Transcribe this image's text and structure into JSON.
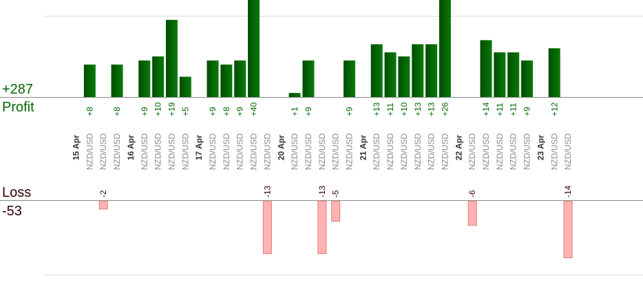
{
  "summary": {
    "profit_total": "+287",
    "profit_label": "Profit",
    "loss_label": "Loss",
    "loss_total": "-53"
  },
  "colors": {
    "profit_bar_dark": "#004d00",
    "profit_bar_light": "#0a7a0a",
    "profit_text": "#006600",
    "loss_bar": "#ffb3b3",
    "loss_bar_border": "#e07a7a",
    "loss_text": "#330000",
    "date_text": "#333333",
    "pair_text": "#8a8a8a",
    "axis": "#888888",
    "grid": "#dddddd"
  },
  "chart_data": {
    "type": "bar",
    "y_scale": "profit and loss bars share one scale, clipped at the panel edges",
    "grid": true,
    "slots": [
      {
        "label": "15 Apr",
        "kind": "date"
      },
      {
        "label": "NZD/USD",
        "kind": "trade",
        "value": 8
      },
      {
        "label": "NZD/USD",
        "kind": "trade",
        "value": -2
      },
      {
        "label": "NZD/USD",
        "kind": "trade",
        "value": 8
      },
      {
        "label": "16 Apr",
        "kind": "date"
      },
      {
        "label": "NZD/USD",
        "kind": "trade",
        "value": 9
      },
      {
        "label": "NZD/USD",
        "kind": "trade",
        "value": 10
      },
      {
        "label": "NZD/USD",
        "kind": "trade",
        "value": 19
      },
      {
        "label": "NZD/USD",
        "kind": "trade",
        "value": 5
      },
      {
        "label": "17 Apr",
        "kind": "date"
      },
      {
        "label": "NZD/USD",
        "kind": "trade",
        "value": 9
      },
      {
        "label": "NZD/USD",
        "kind": "trade",
        "value": 8
      },
      {
        "label": "NZD/USD",
        "kind": "trade",
        "value": 9
      },
      {
        "label": "NZD/USD",
        "kind": "trade",
        "value": 40
      },
      {
        "label": "NZD/USD",
        "kind": "trade",
        "value": -13
      },
      {
        "label": "20 Apr",
        "kind": "date"
      },
      {
        "label": "NZD/USD",
        "kind": "trade",
        "value": 1
      },
      {
        "label": "NZD/USD",
        "kind": "trade",
        "value": 9
      },
      {
        "label": "NZD/USD",
        "kind": "trade",
        "value": -13
      },
      {
        "label": "NZD/USD",
        "kind": "trade",
        "value": -5
      },
      {
        "label": "NZD/USD",
        "kind": "trade",
        "value": 9
      },
      {
        "label": "21 Apr",
        "kind": "date"
      },
      {
        "label": "NZD/USD",
        "kind": "trade",
        "value": 13
      },
      {
        "label": "NZD/USD",
        "kind": "trade",
        "value": 11
      },
      {
        "label": "NZD/USD",
        "kind": "trade",
        "value": 10
      },
      {
        "label": "NZD/USD",
        "kind": "trade",
        "value": 13
      },
      {
        "label": "NZD/USD",
        "kind": "trade",
        "value": 13
      },
      {
        "label": "NZD/USD",
        "kind": "trade",
        "value": 26
      },
      {
        "label": "22 Apr",
        "kind": "date"
      },
      {
        "label": "NZD/USD",
        "kind": "trade",
        "value": -6
      },
      {
        "label": "NZD/USD",
        "kind": "trade",
        "value": 14
      },
      {
        "label": "NZD/USD",
        "kind": "trade",
        "value": 11
      },
      {
        "label": "NZD/USD",
        "kind": "trade",
        "value": 11
      },
      {
        "label": "NZD/USD",
        "kind": "trade",
        "value": 9
      },
      {
        "label": "23 Apr",
        "kind": "date"
      },
      {
        "label": "NZD/USD",
        "kind": "trade",
        "value": 12
      },
      {
        "label": "NZD/USD",
        "kind": "trade",
        "value": -14
      }
    ]
  }
}
